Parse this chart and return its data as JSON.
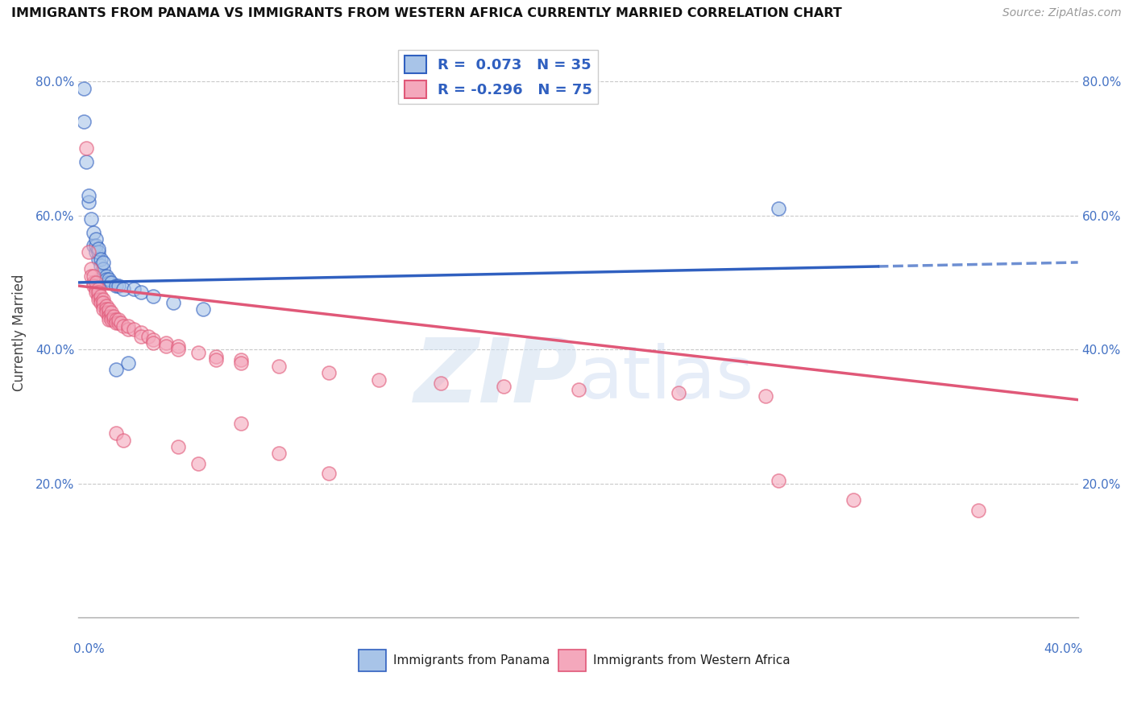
{
  "title": "IMMIGRANTS FROM PANAMA VS IMMIGRANTS FROM WESTERN AFRICA CURRENTLY MARRIED CORRELATION CHART",
  "source": "Source: ZipAtlas.com",
  "ylabel": "Currently Married",
  "blue_color": "#a8c4e8",
  "pink_color": "#f4a8bc",
  "blue_line_color": "#3060c0",
  "pink_line_color": "#e05878",
  "blue_line": {
    "x0": 0.0,
    "y0": 0.5,
    "x1": 0.4,
    "y1": 0.53
  },
  "blue_line_solid_end": 0.32,
  "pink_line": {
    "x0": 0.0,
    "y0": 0.495,
    "x1": 0.4,
    "y1": 0.325
  },
  "xlim": [
    0.0,
    0.4
  ],
  "ylim": [
    0.0,
    0.85
  ],
  "yticks": [
    0.2,
    0.4,
    0.6,
    0.8
  ],
  "ytick_labels": [
    "20.0%",
    "40.0%",
    "60.0%",
    "80.0%"
  ],
  "blue_scatter": [
    [
      0.002,
      0.79
    ],
    [
      0.002,
      0.74
    ],
    [
      0.003,
      0.68
    ],
    [
      0.004,
      0.62
    ],
    [
      0.004,
      0.63
    ],
    [
      0.005,
      0.595
    ],
    [
      0.006,
      0.555
    ],
    [
      0.006,
      0.575
    ],
    [
      0.007,
      0.545
    ],
    [
      0.007,
      0.555
    ],
    [
      0.007,
      0.565
    ],
    [
      0.008,
      0.535
    ],
    [
      0.008,
      0.545
    ],
    [
      0.008,
      0.55
    ],
    [
      0.009,
      0.525
    ],
    [
      0.009,
      0.535
    ],
    [
      0.01,
      0.51
    ],
    [
      0.01,
      0.52
    ],
    [
      0.01,
      0.53
    ],
    [
      0.011,
      0.51
    ],
    [
      0.011,
      0.505
    ],
    [
      0.012,
      0.5
    ],
    [
      0.012,
      0.505
    ],
    [
      0.013,
      0.5
    ],
    [
      0.015,
      0.495
    ],
    [
      0.016,
      0.495
    ],
    [
      0.018,
      0.49
    ],
    [
      0.022,
      0.49
    ],
    [
      0.025,
      0.485
    ],
    [
      0.03,
      0.48
    ],
    [
      0.038,
      0.47
    ],
    [
      0.05,
      0.46
    ],
    [
      0.28,
      0.61
    ],
    [
      0.02,
      0.38
    ],
    [
      0.015,
      0.37
    ]
  ],
  "pink_scatter": [
    [
      0.003,
      0.7
    ],
    [
      0.004,
      0.545
    ],
    [
      0.005,
      0.52
    ],
    [
      0.005,
      0.51
    ],
    [
      0.006,
      0.5
    ],
    [
      0.006,
      0.51
    ],
    [
      0.006,
      0.495
    ],
    [
      0.007,
      0.49
    ],
    [
      0.007,
      0.5
    ],
    [
      0.007,
      0.485
    ],
    [
      0.008,
      0.48
    ],
    [
      0.008,
      0.49
    ],
    [
      0.008,
      0.485
    ],
    [
      0.008,
      0.475
    ],
    [
      0.009,
      0.475
    ],
    [
      0.009,
      0.48
    ],
    [
      0.009,
      0.47
    ],
    [
      0.01,
      0.465
    ],
    [
      0.01,
      0.475
    ],
    [
      0.01,
      0.47
    ],
    [
      0.01,
      0.46
    ],
    [
      0.011,
      0.465
    ],
    [
      0.011,
      0.46
    ],
    [
      0.011,
      0.455
    ],
    [
      0.012,
      0.455
    ],
    [
      0.012,
      0.46
    ],
    [
      0.012,
      0.45
    ],
    [
      0.012,
      0.445
    ],
    [
      0.013,
      0.45
    ],
    [
      0.013,
      0.455
    ],
    [
      0.013,
      0.445
    ],
    [
      0.014,
      0.445
    ],
    [
      0.014,
      0.45
    ],
    [
      0.015,
      0.445
    ],
    [
      0.015,
      0.44
    ],
    [
      0.016,
      0.44
    ],
    [
      0.016,
      0.445
    ],
    [
      0.017,
      0.44
    ],
    [
      0.018,
      0.435
    ],
    [
      0.02,
      0.43
    ],
    [
      0.02,
      0.435
    ],
    [
      0.022,
      0.43
    ],
    [
      0.025,
      0.425
    ],
    [
      0.025,
      0.42
    ],
    [
      0.028,
      0.42
    ],
    [
      0.03,
      0.415
    ],
    [
      0.03,
      0.41
    ],
    [
      0.035,
      0.41
    ],
    [
      0.035,
      0.405
    ],
    [
      0.04,
      0.405
    ],
    [
      0.04,
      0.4
    ],
    [
      0.048,
      0.395
    ],
    [
      0.055,
      0.39
    ],
    [
      0.055,
      0.385
    ],
    [
      0.065,
      0.385
    ],
    [
      0.065,
      0.38
    ],
    [
      0.08,
      0.375
    ],
    [
      0.1,
      0.365
    ],
    [
      0.12,
      0.355
    ],
    [
      0.145,
      0.35
    ],
    [
      0.17,
      0.345
    ],
    [
      0.2,
      0.34
    ],
    [
      0.24,
      0.335
    ],
    [
      0.275,
      0.33
    ],
    [
      0.015,
      0.275
    ],
    [
      0.018,
      0.265
    ],
    [
      0.04,
      0.255
    ],
    [
      0.048,
      0.23
    ],
    [
      0.065,
      0.29
    ],
    [
      0.08,
      0.245
    ],
    [
      0.1,
      0.215
    ],
    [
      0.28,
      0.205
    ],
    [
      0.31,
      0.175
    ],
    [
      0.36,
      0.16
    ]
  ],
  "background_color": "#ffffff",
  "grid_color": "#bbbbbb"
}
